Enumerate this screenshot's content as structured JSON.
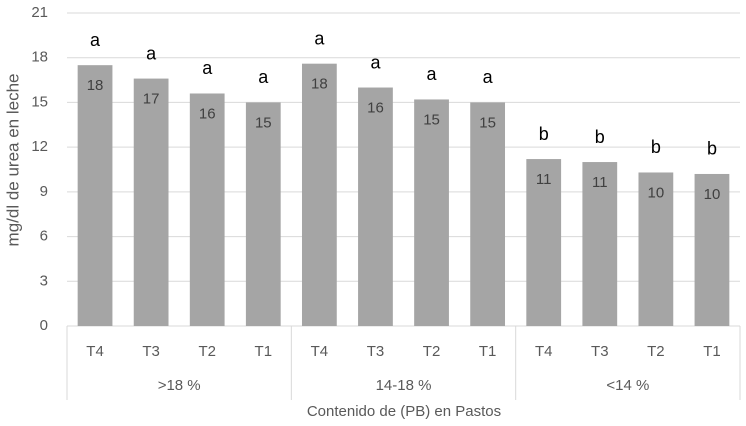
{
  "chart_data": {
    "type": "bar",
    "y_label": "mg/dl de urea en leche",
    "x_label": "Contenido de (PB) en Pastos",
    "categories": [
      "T4",
      "T3",
      "T2",
      "T1",
      "T4",
      "T3",
      "T2",
      "T1",
      "T4",
      "T3",
      "T2",
      "T1"
    ],
    "category_groups": [
      ">18 %",
      "14-18 %",
      "<14 %"
    ],
    "values": [
      17.5,
      16.6,
      15.6,
      15.0,
      17.6,
      16.0,
      15.2,
      15.0,
      11.2,
      11.0,
      10.3,
      10.2
    ],
    "value_labels": [
      "18",
      "17",
      "16",
      "15",
      "18",
      "16",
      "15",
      "15",
      "11",
      "11",
      "10",
      "10"
    ],
    "annotations": [
      "a",
      "a",
      "a",
      "a",
      "a",
      "a",
      "a",
      "a",
      "b",
      "b",
      "b",
      "b"
    ],
    "color": "#a5a5a5",
    "ylim": [
      0,
      21
    ],
    "yticks": [
      0,
      3,
      6,
      9,
      12,
      15,
      18,
      21
    ],
    "grid": true
  }
}
